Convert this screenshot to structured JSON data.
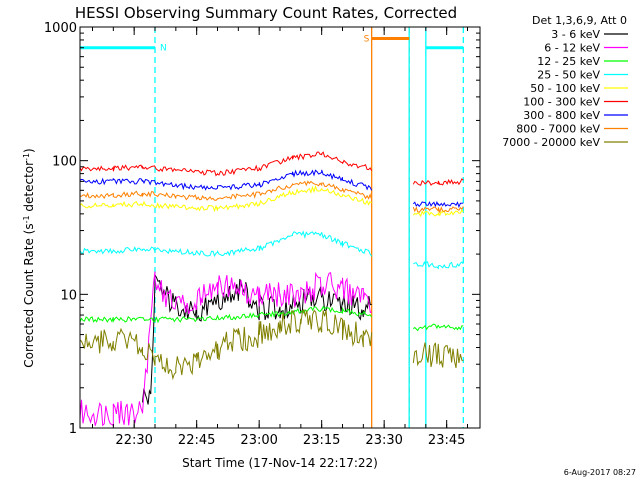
{
  "chart_data": {
    "type": "line",
    "title": "HESSI Observing Summary Count Rates, Corrected",
    "xlabel": "Start Time (17-Nov-14 22:17:22)",
    "ylabel": "Corrected Count Rate (s⁻¹ detector⁻¹)",
    "ylabel_main": "Corrected Count Rate (s",
    "ylabel_sup1": "-1",
    "ylabel_mid": " detector",
    "ylabel_sup2": "-1",
    "ylabel_end": ")",
    "y_scale": "log",
    "ylim": [
      1,
      1000
    ],
    "xlim_min": [
      1337,
      1433
    ],
    "x_ticks": [
      {
        "min": 1350,
        "label": "22:30"
      },
      {
        "min": 1365,
        "label": "22:45"
      },
      {
        "min": 1380,
        "label": "23:00"
      },
      {
        "min": 1395,
        "label": "23:15"
      },
      {
        "min": 1410,
        "label": "23:30"
      },
      {
        "min": 1425,
        "label": "23:45"
      }
    ],
    "y_ticks": [
      {
        "value": 1,
        "label": "1"
      },
      {
        "value": 10,
        "label": "10"
      },
      {
        "value": 100,
        "label": "100"
      },
      {
        "value": 1000,
        "label": "1000"
      }
    ],
    "legend_title": "Det 1,3,6,9, Att 0",
    "legend_position": "right",
    "series": [
      {
        "name": "3 - 6 keV",
        "color": "#000000",
        "points": [
          [
            1352,
            1.8
          ],
          [
            1354,
            1.6
          ],
          [
            1355,
            12
          ],
          [
            1360,
            8
          ],
          [
            1365,
            7
          ],
          [
            1370,
            9
          ],
          [
            1375,
            11
          ],
          [
            1380,
            8
          ],
          [
            1385,
            8
          ],
          [
            1390,
            9
          ],
          [
            1395,
            9
          ],
          [
            1400,
            8
          ],
          [
            1405,
            8
          ],
          [
            1407,
            8
          ]
        ]
      },
      {
        "name": "6 - 12 keV",
        "color": "#ff00ff",
        "points": [
          [
            1337,
            1.3
          ],
          [
            1345,
            1.3
          ],
          [
            1352,
            1.3
          ],
          [
            1355,
            14
          ],
          [
            1358,
            9
          ],
          [
            1362,
            8
          ],
          [
            1366,
            9
          ],
          [
            1370,
            12
          ],
          [
            1373,
            12
          ],
          [
            1376,
            11
          ],
          [
            1380,
            10
          ],
          [
            1385,
            10
          ],
          [
            1390,
            10
          ],
          [
            1395,
            12
          ],
          [
            1400,
            11
          ],
          [
            1405,
            9
          ],
          [
            1407,
            8
          ]
        ]
      },
      {
        "name": "12 - 25 keV",
        "color": "#00ff00",
        "points": [
          [
            1337,
            6.5
          ],
          [
            1345,
            6.5
          ],
          [
            1355,
            6.5
          ],
          [
            1365,
            6.5
          ],
          [
            1375,
            6.8
          ],
          [
            1385,
            7.2
          ],
          [
            1395,
            7.8
          ],
          [
            1400,
            7.5
          ],
          [
            1407,
            7
          ],
          [
            1417,
            5.5
          ],
          [
            1423,
            5.8
          ],
          [
            1429,
            5.6
          ]
        ]
      },
      {
        "name": "25 - 50 keV",
        "color": "#00ffff",
        "points": [
          [
            1337,
            21
          ],
          [
            1345,
            21
          ],
          [
            1352,
            22
          ],
          [
            1360,
            21
          ],
          [
            1370,
            20
          ],
          [
            1380,
            22
          ],
          [
            1388,
            28
          ],
          [
            1395,
            28
          ],
          [
            1400,
            24
          ],
          [
            1407,
            20
          ],
          [
            1417,
            17
          ],
          [
            1420,
            17
          ],
          [
            1423,
            16
          ],
          [
            1429,
            17
          ]
        ]
      },
      {
        "name": "50 - 100 keV",
        "color": "#ffff00",
        "points": [
          [
            1337,
            46
          ],
          [
            1345,
            46
          ],
          [
            1352,
            48
          ],
          [
            1360,
            45
          ],
          [
            1370,
            44
          ],
          [
            1380,
            48
          ],
          [
            1388,
            58
          ],
          [
            1395,
            62
          ],
          [
            1400,
            55
          ],
          [
            1407,
            48
          ],
          [
            1417,
            40
          ],
          [
            1423,
            40
          ],
          [
            1429,
            41
          ]
        ]
      },
      {
        "name": "100 - 300 keV",
        "color": "#ff0000",
        "points": [
          [
            1337,
            87
          ],
          [
            1345,
            87
          ],
          [
            1352,
            90
          ],
          [
            1360,
            85
          ],
          [
            1370,
            80
          ],
          [
            1380,
            88
          ],
          [
            1388,
            105
          ],
          [
            1395,
            112
          ],
          [
            1400,
            98
          ],
          [
            1407,
            88
          ],
          [
            1417,
            68
          ],
          [
            1423,
            68
          ],
          [
            1429,
            70
          ]
        ]
      },
      {
        "name": "300 - 800 keV",
        "color": "#0000ff",
        "points": [
          [
            1337,
            70
          ],
          [
            1345,
            70
          ],
          [
            1352,
            70
          ],
          [
            1360,
            65
          ],
          [
            1370,
            62
          ],
          [
            1380,
            66
          ],
          [
            1388,
            80
          ],
          [
            1395,
            82
          ],
          [
            1400,
            72
          ],
          [
            1407,
            62
          ],
          [
            1417,
            47
          ],
          [
            1423,
            47
          ],
          [
            1429,
            47
          ]
        ]
      },
      {
        "name": "800 - 7000 keV",
        "color": "#ff8000",
        "points": [
          [
            1337,
            55
          ],
          [
            1345,
            55
          ],
          [
            1352,
            57
          ],
          [
            1360,
            54
          ],
          [
            1370,
            52
          ],
          [
            1380,
            56
          ],
          [
            1388,
            66
          ],
          [
            1395,
            68
          ],
          [
            1400,
            60
          ],
          [
            1407,
            53
          ],
          [
            1417,
            43
          ],
          [
            1423,
            43
          ],
          [
            1429,
            44
          ]
        ]
      },
      {
        "name": "7000 - 20000 keV",
        "color": "#808000",
        "points": [
          [
            1337,
            4.5
          ],
          [
            1345,
            4.5
          ],
          [
            1352,
            4
          ],
          [
            1355,
            3
          ],
          [
            1360,
            2.8
          ],
          [
            1365,
            3.2
          ],
          [
            1370,
            4
          ],
          [
            1375,
            4.5
          ],
          [
            1380,
            5
          ],
          [
            1385,
            6
          ],
          [
            1390,
            6
          ],
          [
            1395,
            6.5
          ],
          [
            1400,
            5.5
          ],
          [
            1405,
            5
          ],
          [
            1407,
            4.5
          ],
          [
            1417,
            3.5
          ],
          [
            1423,
            3.5
          ],
          [
            1429,
            3.5
          ]
        ]
      }
    ],
    "markers": [
      {
        "label": "N",
        "color": "#00ffff",
        "x_min": 1337,
        "x_max": 1355,
        "level": 700
      },
      {
        "label": "S",
        "color": "#ff8000",
        "x_min": 1407,
        "x_max": 1416,
        "level": 820
      },
      {
        "label": "",
        "color": "#00ffff",
        "x_min": 1420,
        "x_max": 1429,
        "level": 700
      }
    ],
    "vlines": [
      {
        "x_min": 1355,
        "color": "#00ffff",
        "dashed": true
      },
      {
        "x_min": 1407,
        "color": "#ff8000",
        "dashed": false
      },
      {
        "x_min": 1416,
        "color": "#ff8000",
        "dashed": true
      },
      {
        "x_min": 1416,
        "color": "#00ffff",
        "dashed": false
      },
      {
        "x_min": 1420,
        "color": "#00ffff",
        "dashed": false
      },
      {
        "x_min": 1429,
        "color": "#00ffff",
        "dashed": true
      }
    ]
  },
  "footer": {
    "timestamp": "6-Aug-2017 08:27"
  }
}
